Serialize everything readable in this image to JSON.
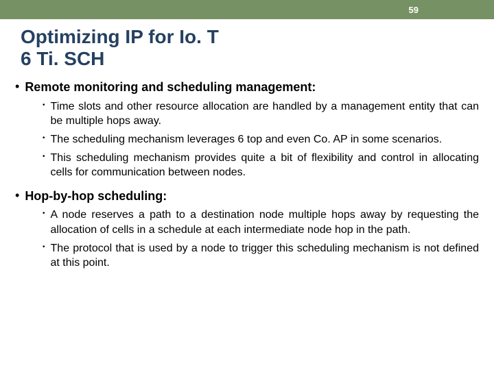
{
  "colors": {
    "header_bg": "#769164",
    "title_color": "#254061",
    "text_color": "#000000",
    "page_number_color": "#ffffff"
  },
  "page_number": "59",
  "title_line1": "Optimizing IP for Io. T",
  "title_line2": "6 Ti. SCH",
  "sections": [
    {
      "heading": "Remote monitoring and scheduling management:",
      "bullets": [
        "Time slots and other resource allocation are handled by a management entity that can be multiple hops away.",
        "The scheduling mechanism leverages 6 top and even Co. AP in some scenarios.",
        "This scheduling mechanism provides quite a bit of flexibility and control in allocating cells for communication between nodes."
      ]
    },
    {
      "heading": "Hop-by-hop scheduling:",
      "bullets": [
        "A node reserves a path to a destination node multiple hops away by requesting the allocation of cells in a schedule at each intermediate node hop in the path.",
        "The protocol that is used by a node to trigger this scheduling mechanism is not defined at this point."
      ]
    }
  ]
}
